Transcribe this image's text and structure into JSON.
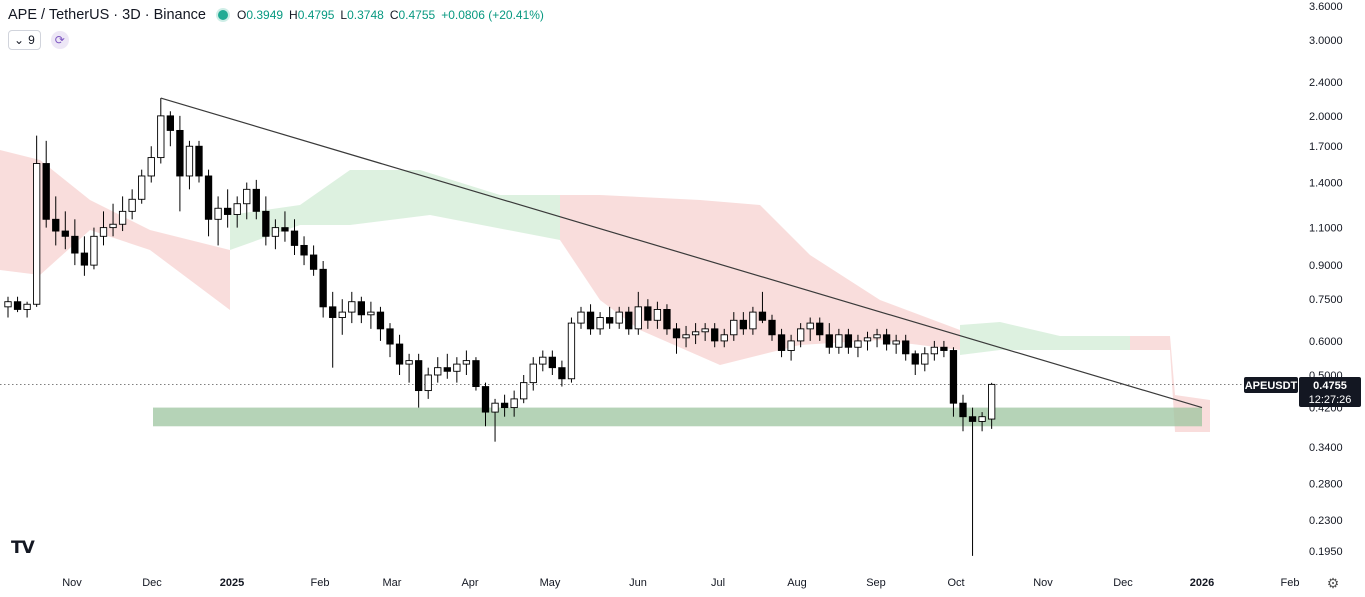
{
  "header": {
    "symbol": "APE / TetherUS · 3D · Binance",
    "ohlc": [
      {
        "key": "O",
        "value": "0.3949"
      },
      {
        "key": "H",
        "value": "0.4795"
      },
      {
        "key": "L",
        "value": "0.3748"
      },
      {
        "key": "C",
        "value": "0.4755"
      }
    ],
    "change": "+0.0806 (+20.41%)",
    "change_color": "#089981"
  },
  "controls": {
    "indicator_count": "9"
  },
  "price_label": {
    "ticker": "APEUSDT",
    "price": "0.4755",
    "countdown": "12:27:26"
  },
  "colors": {
    "up": "#ffffff",
    "down": "#000000",
    "cloud_bear": "#f8d7d6",
    "cloud_bull": "#d7eedb",
    "support_zone": "#9cc49f",
    "trendline": "#3a3a3a"
  },
  "chart_data": {
    "type": "candlestick",
    "y_scale": "log",
    "ylim": [
      0.19,
      3.6
    ],
    "y_ticks": [
      "3.6000",
      "3.0000",
      "2.4000",
      "2.0000",
      "1.7000",
      "1.4000",
      "1.1000",
      "0.9000",
      "0.7500",
      "0.6000",
      "0.5000",
      "0.4200",
      "0.3400",
      "0.2800",
      "0.2300",
      "0.1950"
    ],
    "y_tick_values": [
      3.6,
      3.0,
      2.4,
      2.0,
      1.7,
      1.4,
      1.1,
      0.9,
      0.75,
      0.6,
      0.5,
      0.42,
      0.34,
      0.28,
      0.23,
      0.195
    ],
    "x_labels": [
      "Nov",
      "Dec",
      "2025",
      "Feb",
      "Mar",
      "Apr",
      "May",
      "Jun",
      "Jul",
      "Aug",
      "Sep",
      "Oct",
      "Nov",
      "Dec",
      "2026",
      "Feb"
    ],
    "x_label_bold": [
      "2025",
      "2026"
    ],
    "candles": [
      [
        0.72,
        0.76,
        0.68,
        0.74
      ],
      [
        0.74,
        0.76,
        0.7,
        0.71
      ],
      [
        0.71,
        0.74,
        0.68,
        0.73
      ],
      [
        0.73,
        1.8,
        0.72,
        1.55
      ],
      [
        1.55,
        1.75,
        1.1,
        1.15
      ],
      [
        1.15,
        1.3,
        1.0,
        1.08
      ],
      [
        1.08,
        1.2,
        0.98,
        1.05
      ],
      [
        1.05,
        1.15,
        0.9,
        0.96
      ],
      [
        0.96,
        1.05,
        0.85,
        0.9
      ],
      [
        0.9,
        1.1,
        0.88,
        1.05
      ],
      [
        1.05,
        1.2,
        1.0,
        1.1
      ],
      [
        1.1,
        1.25,
        1.05,
        1.12
      ],
      [
        1.12,
        1.3,
        1.08,
        1.2
      ],
      [
        1.2,
        1.35,
        1.15,
        1.28
      ],
      [
        1.28,
        1.5,
        1.25,
        1.45
      ],
      [
        1.45,
        1.7,
        1.4,
        1.6
      ],
      [
        1.6,
        2.2,
        1.55,
        2.0
      ],
      [
        2.0,
        2.05,
        1.7,
        1.85
      ],
      [
        1.85,
        2.0,
        1.2,
        1.45
      ],
      [
        1.45,
        1.75,
        1.35,
        1.7
      ],
      [
        1.7,
        1.75,
        1.4,
        1.45
      ],
      [
        1.45,
        1.5,
        1.05,
        1.15
      ],
      [
        1.15,
        1.3,
        1.0,
        1.22
      ],
      [
        1.22,
        1.35,
        1.1,
        1.18
      ],
      [
        1.18,
        1.3,
        1.1,
        1.25
      ],
      [
        1.25,
        1.4,
        1.15,
        1.35
      ],
      [
        1.35,
        1.42,
        1.15,
        1.2
      ],
      [
        1.2,
        1.3,
        1.0,
        1.05
      ],
      [
        1.05,
        1.15,
        0.98,
        1.1
      ],
      [
        1.1,
        1.2,
        1.02,
        1.08
      ],
      [
        1.08,
        1.15,
        0.95,
        1.0
      ],
      [
        1.0,
        1.05,
        0.9,
        0.95
      ],
      [
        0.95,
        1.0,
        0.85,
        0.88
      ],
      [
        0.88,
        0.92,
        0.68,
        0.72
      ],
      [
        0.72,
        0.78,
        0.52,
        0.68
      ],
      [
        0.68,
        0.75,
        0.62,
        0.7
      ],
      [
        0.7,
        0.78,
        0.66,
        0.74
      ],
      [
        0.74,
        0.76,
        0.66,
        0.69
      ],
      [
        0.69,
        0.74,
        0.64,
        0.7
      ],
      [
        0.7,
        0.72,
        0.6,
        0.64
      ],
      [
        0.64,
        0.66,
        0.55,
        0.59
      ],
      [
        0.59,
        0.62,
        0.5,
        0.53
      ],
      [
        0.53,
        0.56,
        0.48,
        0.54
      ],
      [
        0.54,
        0.56,
        0.42,
        0.46
      ],
      [
        0.46,
        0.52,
        0.44,
        0.5
      ],
      [
        0.5,
        0.55,
        0.48,
        0.52
      ],
      [
        0.52,
        0.56,
        0.49,
        0.51
      ],
      [
        0.51,
        0.55,
        0.48,
        0.53
      ],
      [
        0.53,
        0.57,
        0.5,
        0.54
      ],
      [
        0.54,
        0.55,
        0.46,
        0.47
      ],
      [
        0.47,
        0.48,
        0.38,
        0.41
      ],
      [
        0.41,
        0.44,
        0.35,
        0.43
      ],
      [
        0.43,
        0.45,
        0.4,
        0.42
      ],
      [
        0.42,
        0.46,
        0.4,
        0.44
      ],
      [
        0.44,
        0.5,
        0.43,
        0.48
      ],
      [
        0.48,
        0.55,
        0.46,
        0.53
      ],
      [
        0.53,
        0.57,
        0.51,
        0.55
      ],
      [
        0.55,
        0.57,
        0.5,
        0.52
      ],
      [
        0.52,
        0.54,
        0.47,
        0.49
      ],
      [
        0.49,
        0.68,
        0.48,
        0.66
      ],
      [
        0.66,
        0.72,
        0.64,
        0.7
      ],
      [
        0.7,
        0.73,
        0.62,
        0.64
      ],
      [
        0.64,
        0.7,
        0.62,
        0.68
      ],
      [
        0.68,
        0.72,
        0.64,
        0.66
      ],
      [
        0.66,
        0.72,
        0.64,
        0.7
      ],
      [
        0.7,
        0.72,
        0.62,
        0.64
      ],
      [
        0.64,
        0.78,
        0.62,
        0.72
      ],
      [
        0.72,
        0.75,
        0.64,
        0.67
      ],
      [
        0.67,
        0.74,
        0.64,
        0.71
      ],
      [
        0.71,
        0.73,
        0.62,
        0.64
      ],
      [
        0.64,
        0.66,
        0.56,
        0.61
      ],
      [
        0.61,
        0.65,
        0.58,
        0.62
      ],
      [
        0.62,
        0.66,
        0.59,
        0.63
      ],
      [
        0.63,
        0.66,
        0.6,
        0.64
      ],
      [
        0.64,
        0.66,
        0.58,
        0.6
      ],
      [
        0.6,
        0.64,
        0.58,
        0.62
      ],
      [
        0.62,
        0.7,
        0.6,
        0.67
      ],
      [
        0.67,
        0.7,
        0.62,
        0.64
      ],
      [
        0.64,
        0.72,
        0.62,
        0.7
      ],
      [
        0.7,
        0.78,
        0.66,
        0.67
      ],
      [
        0.67,
        0.69,
        0.6,
        0.62
      ],
      [
        0.62,
        0.64,
        0.55,
        0.57
      ],
      [
        0.57,
        0.62,
        0.54,
        0.6
      ],
      [
        0.6,
        0.66,
        0.58,
        0.64
      ],
      [
        0.64,
        0.68,
        0.6,
        0.66
      ],
      [
        0.66,
        0.68,
        0.6,
        0.62
      ],
      [
        0.62,
        0.66,
        0.56,
        0.58
      ],
      [
        0.58,
        0.64,
        0.56,
        0.62
      ],
      [
        0.62,
        0.64,
        0.56,
        0.58
      ],
      [
        0.58,
        0.62,
        0.55,
        0.6
      ],
      [
        0.6,
        0.63,
        0.57,
        0.61
      ],
      [
        0.61,
        0.64,
        0.58,
        0.62
      ],
      [
        0.62,
        0.64,
        0.57,
        0.59
      ],
      [
        0.59,
        0.62,
        0.56,
        0.6
      ],
      [
        0.6,
        0.62,
        0.54,
        0.56
      ],
      [
        0.56,
        0.57,
        0.5,
        0.53
      ],
      [
        0.53,
        0.58,
        0.51,
        0.56
      ],
      [
        0.56,
        0.6,
        0.54,
        0.58
      ],
      [
        0.58,
        0.6,
        0.55,
        0.57
      ],
      [
        0.57,
        0.58,
        0.4,
        0.43
      ],
      [
        0.43,
        0.45,
        0.37,
        0.4
      ],
      [
        0.4,
        0.42,
        0.19,
        0.39
      ],
      [
        0.39,
        0.41,
        0.37,
        0.4
      ],
      [
        0.395,
        0.4795,
        0.3748,
        0.4755
      ]
    ],
    "candle_x_start": 8,
    "candle_x_step": 9.55,
    "trendline": {
      "from": {
        "bar": 16,
        "price": 2.2
      },
      "to_price": 0.42
    },
    "support_zone": {
      "low": 0.38,
      "high": 0.42
    },
    "last_price": 0.4755
  }
}
